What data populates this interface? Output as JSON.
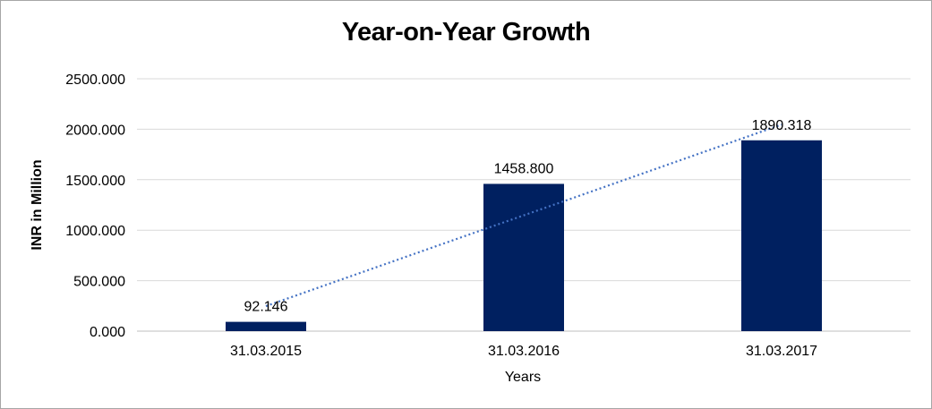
{
  "chart_data": {
    "type": "bar",
    "title": "Year-on-Year Growth",
    "xlabel": "Years",
    "ylabel": "INR in Million",
    "categories": [
      "31.03.2015",
      "31.03.2016",
      "31.03.2017"
    ],
    "values": [
      92.146,
      1458.8,
      1890.318
    ],
    "data_labels": [
      "92.146",
      "1458.800",
      "1890.318"
    ],
    "yticks": [
      "0.000",
      "500.000",
      "1000.000",
      "1500.000",
      "2000.000",
      "2500.000"
    ],
    "ylim": [
      0,
      2500
    ],
    "grid": true,
    "trendline": "linear",
    "legend": "none",
    "colors": {
      "bar": "#002060",
      "trendline": "#4472c4",
      "grid": "#d9d9d9",
      "border": "#a6a6a6"
    }
  }
}
